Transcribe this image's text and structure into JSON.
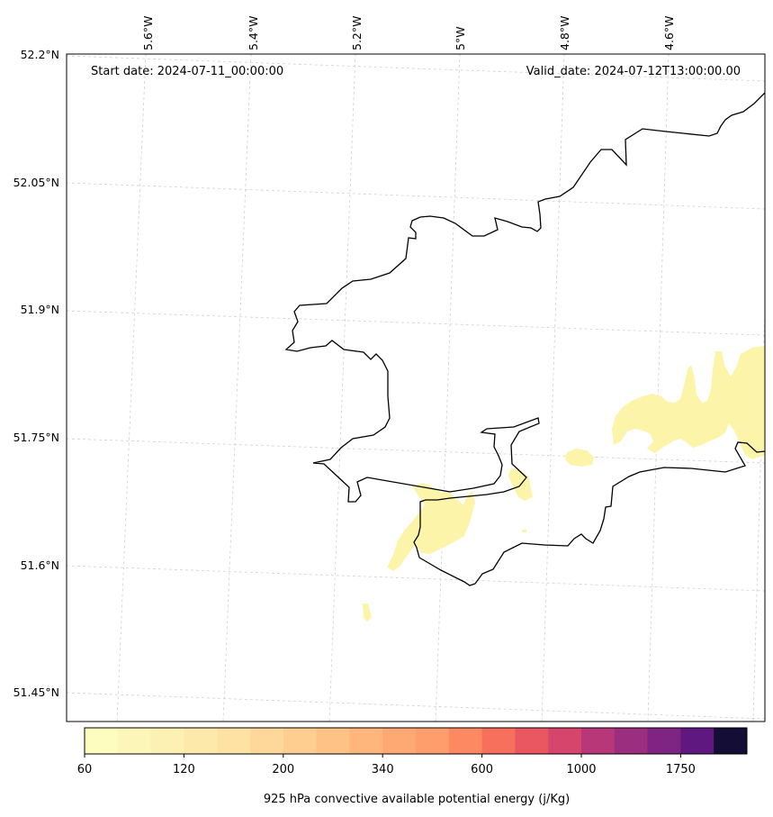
{
  "header": {
    "start_date": "Start date: 2024-07-11_00:00:00",
    "valid_date": "Valid_date: 2024-07-12T13:00:00.00"
  },
  "axes": {
    "lon_labels": [
      "5.6°W",
      "5.4°W",
      "5.2°W",
      "5°W",
      "4.8°W",
      "4.6°W"
    ],
    "lat_labels": [
      "52.2°N",
      "52.05°N",
      "51.9°N",
      "51.75°N",
      "51.6°N",
      "51.45°N"
    ]
  },
  "colorbar": {
    "label": "925 hPa convective available potential energy (j/Kg)",
    "tick_labels": [
      "60",
      "120",
      "200",
      "340",
      "600",
      "1000",
      "1750"
    ],
    "colors": [
      "#fcfdbf",
      "#fcf7b9",
      "#fcf0b2",
      "#fde9aa",
      "#fde2a3",
      "#fed89a",
      "#fecd90",
      "#fec287",
      "#feb67c",
      "#fea973",
      "#fe9e6c",
      "#fc8961",
      "#f7705c",
      "#eb5760",
      "#d6456c",
      "#b73779",
      "#9c2e7f",
      "#7e2482",
      "#5f187f",
      "#140e36"
    ]
  },
  "field_color": "#fbf4a9",
  "coast_color": "#000000"
}
